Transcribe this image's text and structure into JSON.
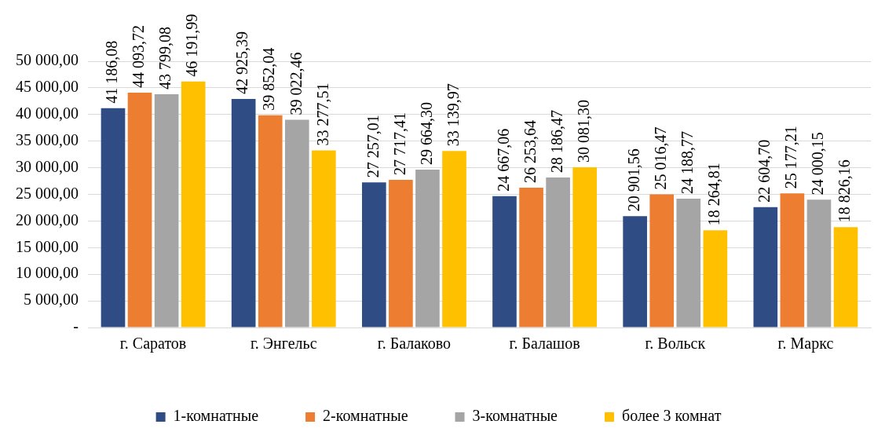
{
  "chart_data": {
    "type": "bar",
    "categories": [
      "г. Саратов",
      "г. Энгельс",
      "г. Балаково",
      "г. Балашов",
      "г. Вольск",
      "г. Маркс"
    ],
    "series": [
      {
        "name": "1-комнатные",
        "color": "#2f4d84",
        "values": [
          41186.08,
          42925.39,
          27257.01,
          24667.06,
          20901.56,
          22604.7
        ],
        "value_labels": [
          "41 186,08",
          "42 925,39",
          "27 257,01",
          "24 667,06",
          "20 901,56",
          "22 604,70"
        ]
      },
      {
        "name": "2-комнатные",
        "color": "#ed7d31",
        "values": [
          44093.72,
          39852.04,
          27717.41,
          26253.64,
          25016.47,
          25177.21
        ],
        "value_labels": [
          "44 093,72",
          "39 852,04",
          "27 717,41",
          "26 253,64",
          "25 016,47",
          "25 177,21"
        ]
      },
      {
        "name": "3-комнатные",
        "color": "#a5a5a5",
        "values": [
          43799.08,
          39022.46,
          29664.3,
          28186.47,
          24188.77,
          24000.15
        ],
        "value_labels": [
          "43 799,08",
          "39 022,46",
          "29 664,30",
          "28 186,47",
          "24 188,77",
          "24 000,15"
        ]
      },
      {
        "name": "более 3 комнат",
        "color": "#ffc000",
        "values": [
          46191.99,
          33277.51,
          33139.97,
          30081.3,
          18264.81,
          18826.16
        ],
        "value_labels": [
          "46 191,99",
          "33 277,51",
          "33 139,97",
          "30 081,30",
          "18 264,81",
          "18 826,16"
        ]
      }
    ],
    "ylim": [
      0,
      50000
    ],
    "yticks": [
      {
        "value": 0,
        "label": "-"
      },
      {
        "value": 5000,
        "label": "5 000,00"
      },
      {
        "value": 10000,
        "label": "10 000,00"
      },
      {
        "value": 15000,
        "label": "15 000,00"
      },
      {
        "value": 20000,
        "label": "20 000,00"
      },
      {
        "value": 25000,
        "label": "25 000,00"
      },
      {
        "value": 30000,
        "label": "30 000,00"
      },
      {
        "value": 35000,
        "label": "35 000,00"
      },
      {
        "value": 40000,
        "label": "40 000,00"
      },
      {
        "value": 45000,
        "label": "45 000,00"
      },
      {
        "value": 50000,
        "label": "50 000,00"
      }
    ],
    "grid": "y",
    "legend": "bottom"
  }
}
